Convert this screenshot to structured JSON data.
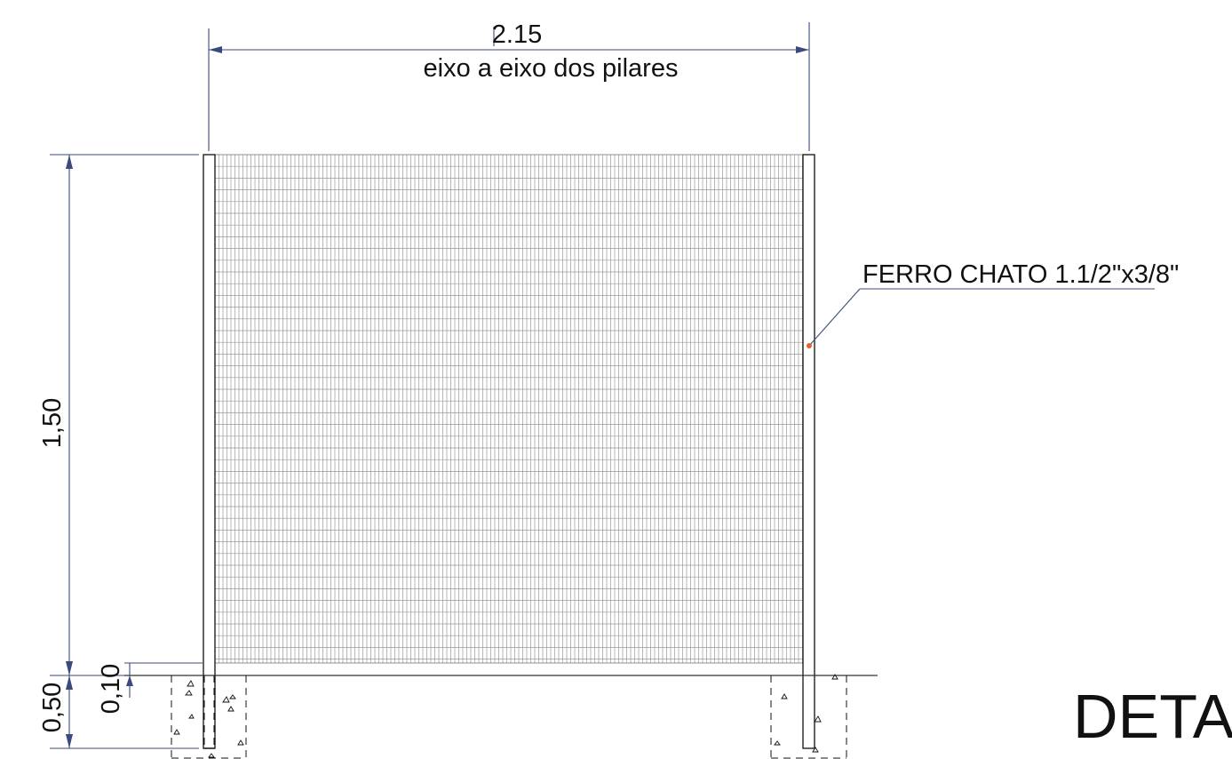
{
  "colors": {
    "dimension": "#3b4a7a",
    "mesh": "#9a9a9a",
    "outline": "#111111",
    "leader_dot": "#e8612c"
  },
  "dimensions": {
    "width_value": "2.15",
    "width_note": "eixo a eixo dos pilares",
    "height_value": "1,50",
    "foundation_depth": "0,50",
    "base_gap": "0,10"
  },
  "annotation": {
    "label": "FERRO CHATO 1.1/2\"x3/8\""
  },
  "title": {
    "text": "DETA"
  }
}
